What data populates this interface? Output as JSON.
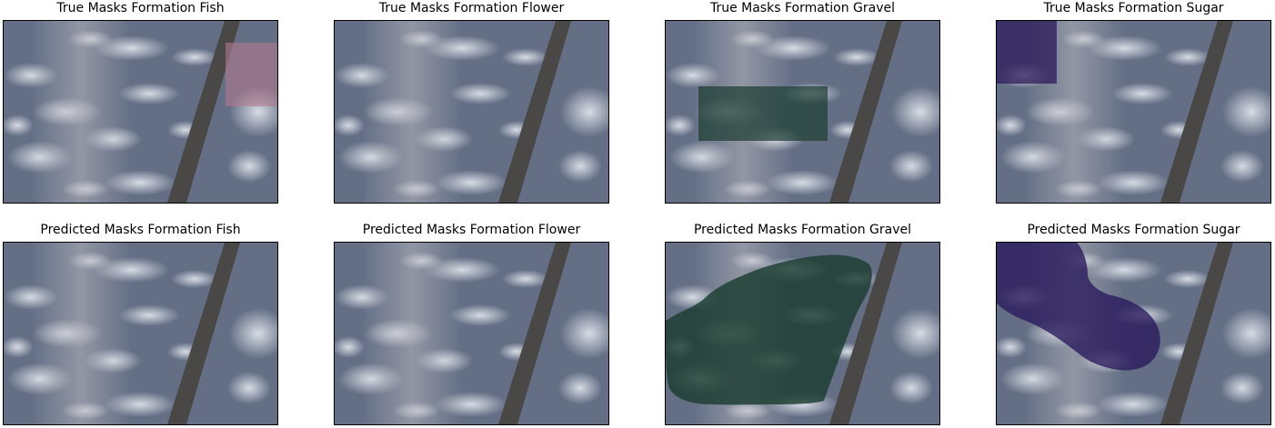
{
  "figure": {
    "panels": [
      {
        "title": "True Masks Formation Fish",
        "mask_shape": "rectangle",
        "mask_color": "#b07a8e",
        "mask_opacity": 0.6
      },
      {
        "title": "True Masks Formation Flower",
        "mask_shape": "none",
        "mask_color": "",
        "mask_opacity": 0
      },
      {
        "title": "True Masks Formation Gravel",
        "mask_shape": "rectangle",
        "mask_color": "#1f3f33",
        "mask_opacity": 0.72
      },
      {
        "title": "True Masks Formation Sugar",
        "mask_shape": "rectangle",
        "mask_color": "#2d1a5a",
        "mask_opacity": 0.75
      },
      {
        "title": "Predicted Masks Formation Fish",
        "mask_shape": "none",
        "mask_color": "",
        "mask_opacity": 0
      },
      {
        "title": "Predicted Masks Formation Flower",
        "mask_shape": "none",
        "mask_color": "",
        "mask_opacity": 0
      },
      {
        "title": "Predicted Masks Formation Gravel",
        "mask_shape": "blob",
        "mask_color": "#1b3d30",
        "mask_opacity": 0.82
      },
      {
        "title": "Predicted Masks Formation Sugar",
        "mask_shape": "blob",
        "mask_color": "#2a1a5c",
        "mask_opacity": 0.8
      }
    ],
    "colors": {
      "ocean": "#646f86",
      "cloud": "#e4e8ee",
      "swath_gap": "#494846",
      "haze": "#b8b7bd"
    }
  }
}
